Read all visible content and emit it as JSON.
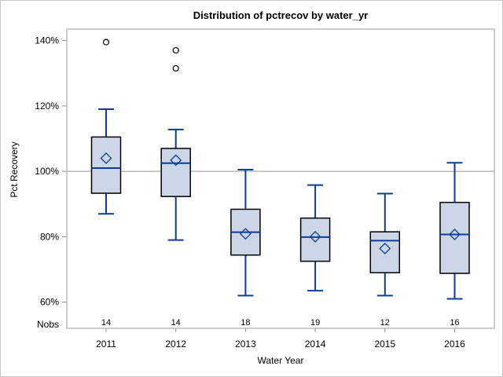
{
  "figure": {
    "title": "Distribution of pctrecov by water_yr",
    "y_axis_label": "Pct Recovery",
    "x_axis_label": "Water Year",
    "nobs_label": "Nobs"
  },
  "colors": {
    "box_fill": "#ccd6e6",
    "box_border": "#000000",
    "line": "#0b3d94",
    "outlier": "#000000",
    "reference_line": "#ababab",
    "plot_border": "#b2b2b2",
    "tick": "#8c8c8c",
    "text": "#000000",
    "figure_border": "#c9c9c9",
    "background": "#ffffff"
  },
  "chart_data": {
    "type": "boxplot",
    "title": "Distribution of pctrecov by water_yr",
    "xlabel": "Water Year",
    "ylabel": "Pct Recovery",
    "ylim": [
      52.0,
      143.5
    ],
    "grid": false,
    "reference_line": 100,
    "y_ticks": [
      {
        "value": 60,
        "label": "60%"
      },
      {
        "value": 80,
        "label": "80%"
      },
      {
        "value": 100,
        "label": "100%"
      },
      {
        "value": 120,
        "label": "120%"
      },
      {
        "value": 140,
        "label": "140%"
      }
    ],
    "categories": [
      "2011",
      "2012",
      "2013",
      "2014",
      "2015",
      "2016"
    ],
    "nobs": [
      14,
      14,
      18,
      19,
      12,
      16
    ],
    "boxes": [
      {
        "category": "2011",
        "min": 87.0,
        "q1": 93.3,
        "median": 101.0,
        "mean": 104.0,
        "q3": 110.5,
        "max": 119.0,
        "outliers": [
          139.5
        ]
      },
      {
        "category": "2012",
        "min": 79.0,
        "q1": 92.3,
        "median": 102.5,
        "mean": 103.4,
        "q3": 107.0,
        "max": 112.8,
        "outliers": [
          137.0,
          131.5
        ]
      },
      {
        "category": "2013",
        "min": 62.0,
        "q1": 74.4,
        "median": 81.4,
        "mean": 80.9,
        "q3": 88.4,
        "max": 100.5,
        "outliers": []
      },
      {
        "category": "2014",
        "min": 63.5,
        "q1": 72.5,
        "median": 79.9,
        "mean": 80.0,
        "q3": 85.7,
        "max": 95.8,
        "outliers": []
      },
      {
        "category": "2015",
        "min": 62.0,
        "q1": 69.0,
        "median": 78.8,
        "mean": 76.4,
        "q3": 81.5,
        "max": 93.2,
        "outliers": []
      },
      {
        "category": "2016",
        "min": 61.0,
        "q1": 68.8,
        "median": 80.7,
        "mean": 80.7,
        "q3": 90.5,
        "max": 102.6,
        "outliers": []
      }
    ]
  }
}
